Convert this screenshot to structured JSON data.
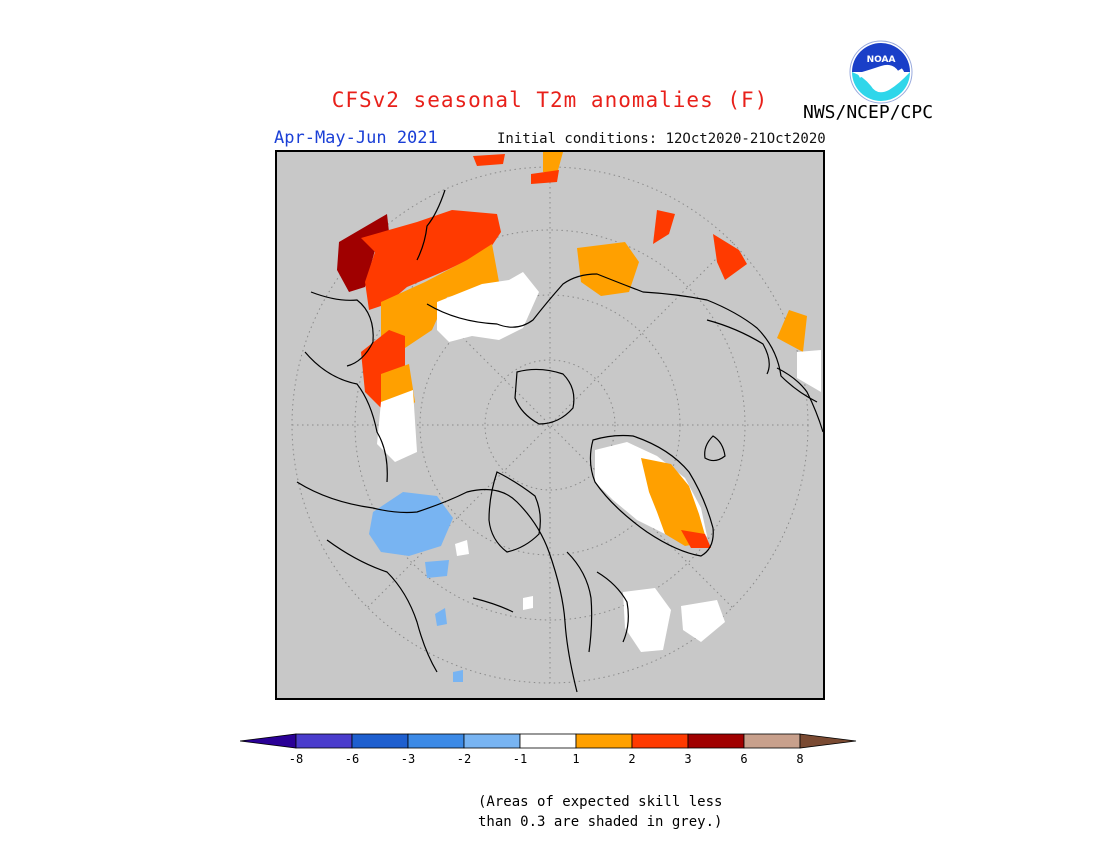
{
  "title": "CFSv2 seasonal T2m anomalies (F)",
  "season_label": "Apr-May-Jun 2021",
  "initial_conditions": "Initial conditions: 12Oct2020-21Oct2020",
  "agency": "NWS/NCEP/CPC",
  "logo_text": "NOAA",
  "colors": {
    "title": "#e8201a",
    "season": "#1a3fd6",
    "skill_mask": "#c8c8c8"
  },
  "legend": {
    "bins": [
      {
        "color": "#2a0096"
      },
      {
        "color": "#4a3ccc"
      },
      {
        "color": "#1e5fcf"
      },
      {
        "color": "#3c8ae6"
      },
      {
        "color": "#78b4f2"
      },
      {
        "color": "#ffffff"
      },
      {
        "color": "#ffa000"
      },
      {
        "color": "#ff3a00"
      },
      {
        "color": "#a00000"
      },
      {
        "color": "#c8a08c"
      },
      {
        "color": "#7a4a32"
      }
    ],
    "tick_labels": [
      "-8",
      "-6",
      "-3",
      "-2",
      "-1",
      "1",
      "2",
      "3",
      "6",
      "8"
    ]
  },
  "note": {
    "line1": "(Areas of expected skill less",
    "line2": "than 0.3 are shaded in grey.)"
  }
}
